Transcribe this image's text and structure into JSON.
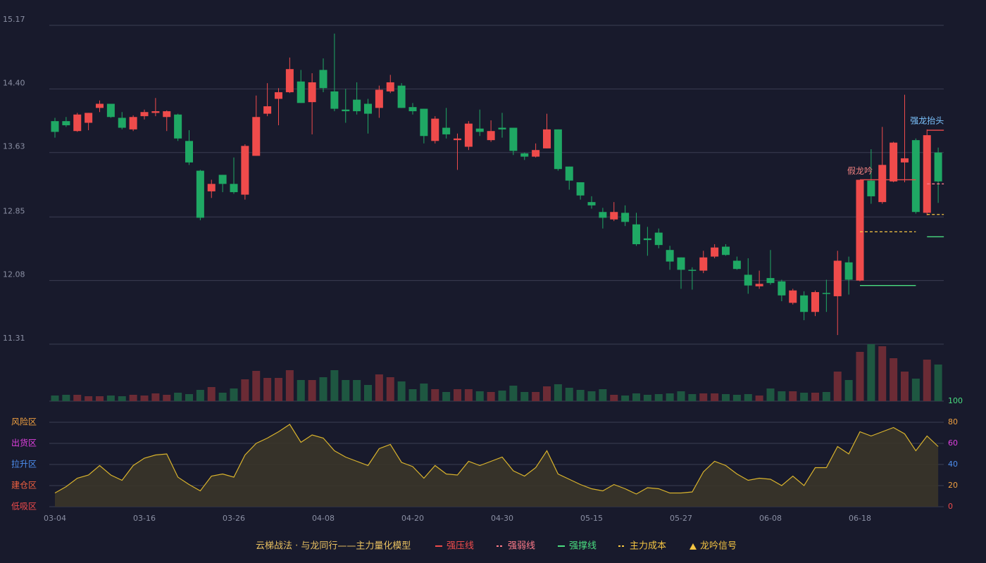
{
  "chart_data": {
    "type": "candlestick",
    "categories": [
      "03-04",
      null,
      null,
      null,
      null,
      null,
      null,
      null,
      "03-16",
      null,
      null,
      null,
      null,
      null,
      null,
      null,
      "03-26",
      null,
      null,
      null,
      null,
      null,
      null,
      null,
      "04-08",
      null,
      null,
      null,
      null,
      null,
      null,
      null,
      "04-20",
      null,
      null,
      null,
      null,
      null,
      null,
      null,
      "04-30",
      null,
      null,
      null,
      null,
      null,
      null,
      null,
      "05-15",
      null,
      null,
      null,
      null,
      null,
      null,
      null,
      "05-27",
      null,
      null,
      null,
      null,
      null,
      null,
      null,
      "06-08",
      null,
      null,
      null,
      null,
      null,
      null,
      null,
      "06-18",
      null,
      null,
      null,
      null,
      null,
      null,
      null
    ],
    "open": [
      14.01,
      14.01,
      13.89,
      13.99,
      14.17,
      14.22,
      14.05,
      13.91,
      14.07,
      14.11,
      14.06,
      14.09,
      13.77,
      13.41,
      13.16,
      13.36,
      13.25,
      13.12,
      13.59,
      14.1,
      14.28,
      14.36,
      14.49,
      14.24,
      14.63,
      14.37,
      14.15,
      14.27,
      14.22,
      14.17,
      14.37,
      14.44,
      14.18,
      14.16,
      13.77,
      13.93,
      13.78,
      13.7,
      13.92,
      13.78,
      13.93,
      13.93,
      13.62,
      13.58,
      13.68,
      13.91,
      13.46,
      13.27,
      13.03,
      12.91,
      12.82,
      12.9,
      12.76,
      12.59,
      12.66,
      12.45,
      12.36,
      12.21,
      12.2,
      12.37,
      12.49,
      12.32,
      12.15,
      12.01,
      12.11,
      12.07,
      11.81,
      11.9,
      11.7,
      11.93,
      11.89,
      12.3,
      12.08,
      13.29,
      13.03,
      13.28,
      13.51,
      13.78,
      12.9,
      13.63
    ],
    "high": [
      14.05,
      14.06,
      14.11,
      14.11,
      14.26,
      14.22,
      14.12,
      14.08,
      14.15,
      14.29,
      14.14,
      14.1,
      13.9,
      13.42,
      13.3,
      13.36,
      13.57,
      13.73,
      14.32,
      14.47,
      14.41,
      14.78,
      14.63,
      14.59,
      14.77,
      15.07,
      14.4,
      14.48,
      14.28,
      14.44,
      14.57,
      14.47,
      14.23,
      14.16,
      14.07,
      14.17,
      13.86,
      14.01,
      14.15,
      14.02,
      14.11,
      13.93,
      13.63,
      13.74,
      14.1,
      13.91,
      13.46,
      13.27,
      13.1,
      12.96,
      13.03,
      12.99,
      12.9,
      12.73,
      12.71,
      12.5,
      12.36,
      12.24,
      12.44,
      12.52,
      12.52,
      12.37,
      12.35,
      12.2,
      12.45,
      12.09,
      11.98,
      11.95,
      11.96,
      12.09,
      12.44,
      12.37,
      13.3,
      13.67,
      13.94,
      13.76,
      14.33,
      13.8,
      13.91,
      13.69
    ],
    "low": [
      13.81,
      13.94,
      13.88,
      13.9,
      14.12,
      14.05,
      13.91,
      13.89,
      14.03,
      14.07,
      13.89,
      13.77,
      13.48,
      12.81,
      13.08,
      13.15,
      13.13,
      13.06,
      13.59,
      14.07,
      13.96,
      14.35,
      14.23,
      13.85,
      14.36,
      14.13,
      13.99,
      14.09,
      13.86,
      14.05,
      14.35,
      14.17,
      14.09,
      13.74,
      13.74,
      13.8,
      13.42,
      13.66,
      13.83,
      13.76,
      13.81,
      13.6,
      13.54,
      13.57,
      13.68,
      13.41,
      13.18,
      13.06,
      12.95,
      12.71,
      12.8,
      12.74,
      12.5,
      12.38,
      12.47,
      12.21,
      11.98,
      11.97,
      12.17,
      12.35,
      12.38,
      12.21,
      11.92,
      11.98,
      12.03,
      11.83,
      11.79,
      11.6,
      11.65,
      11.7,
      11.42,
      11.91,
      12.07,
      13.01,
      13.01,
      13.27,
      13.27,
      12.89,
      12.87,
      13.02
    ],
    "close": [
      13.88,
      13.96,
      14.09,
      14.11,
      14.22,
      14.06,
      13.93,
      14.06,
      14.12,
      14.13,
      14.13,
      13.8,
      13.51,
      12.84,
      13.25,
      13.25,
      13.15,
      13.71,
      14.06,
      14.19,
      14.36,
      14.64,
      14.23,
      14.48,
      14.41,
      14.16,
      14.13,
      14.13,
      14.1,
      14.39,
      14.48,
      14.17,
      14.13,
      13.83,
      14.04,
      13.85,
      13.8,
      13.98,
      13.88,
      13.89,
      13.91,
      13.65,
      13.58,
      13.66,
      13.91,
      13.43,
      13.29,
      13.11,
      12.99,
      12.84,
      12.91,
      12.79,
      12.52,
      12.57,
      12.51,
      12.31,
      12.21,
      12.2,
      12.36,
      12.48,
      12.39,
      12.22,
      12.02,
      12.04,
      12.05,
      11.9,
      11.96,
      11.7,
      11.94,
      11.92,
      12.32,
      12.09,
      13.3,
      13.1,
      13.48,
      13.75,
      13.56,
      12.91,
      13.84,
      13.28
    ],
    "ylim": [
      11.31,
      15.17
    ],
    "yticks": [
      11.31,
      12.08,
      12.85,
      13.63,
      {
        "value": 14.4,
        "label": "14.40"
      },
      15.17
    ],
    "up_color": "#ef4b4b",
    "down_color": "#1fa864",
    "grid": true,
    "volume": {
      "values": [
        8,
        9,
        9,
        7,
        7,
        8,
        7,
        9,
        8,
        11,
        9,
        12,
        10,
        16,
        20,
        12,
        18,
        31,
        43,
        33,
        33,
        44,
        30,
        30,
        34,
        44,
        30,
        30,
        23,
        38,
        34,
        28,
        17,
        25,
        17,
        13,
        17,
        17,
        14,
        13,
        15,
        22,
        13,
        13,
        21,
        24,
        19,
        16,
        14,
        17,
        9,
        8,
        11,
        9,
        10,
        11,
        14,
        10,
        11,
        11,
        10,
        9,
        10,
        8,
        18,
        14,
        14,
        12,
        12,
        13,
        42,
        30,
        70,
        81,
        78,
        61,
        42,
        32,
        59,
        52
      ],
      "ylim": [
        0,
        81
      ],
      "up_color": "#6b2b35",
      "down_color": "#1e5741"
    },
    "oscillator": {
      "values": [
        13,
        19,
        27,
        30,
        39,
        30,
        25,
        39,
        46,
        49,
        50,
        28,
        21,
        15,
        29,
        31,
        28,
        49,
        60,
        65,
        71,
        78,
        61,
        68,
        65,
        53,
        47,
        43,
        39,
        55,
        59,
        42,
        38,
        27,
        39,
        31,
        30,
        43,
        39,
        43,
        47,
        34,
        29,
        37,
        53,
        31,
        26,
        21,
        17,
        15,
        21,
        17,
        12,
        18,
        17,
        13,
        13,
        14,
        33,
        43,
        39,
        31,
        25,
        27,
        26,
        20,
        29,
        20,
        37,
        37,
        57,
        50,
        71,
        67,
        71,
        75,
        69,
        53,
        67,
        57
      ],
      "ylim": [
        0,
        100
      ],
      "yticks": [
        0,
        20,
        40,
        60,
        80,
        100
      ],
      "ytick_colors": [
        "#ef4b4b",
        "#f0a040",
        "#4d8ff0",
        "#e040e0",
        "#f0a040",
        "#4ade80"
      ],
      "zones": [
        {
          "label": "风险区",
          "value": 80,
          "color": "#f0a040"
        },
        {
          "label": "出货区",
          "value": 60,
          "color": "#e040e0"
        },
        {
          "label": "拉升区",
          "value": 40,
          "color": "#4d8ff0"
        },
        {
          "label": "建仓区",
          "value": 20,
          "color": "#f06040"
        },
        {
          "label": "低吸区",
          "value": 0,
          "color": "#ef4b4b"
        }
      ],
      "color": "#d9b32c",
      "fill": "#3a3529"
    },
    "levels": [
      {
        "name": "强压线",
        "color": "#ef4b4b",
        "dash": false,
        "segments": [
          {
            "start": 72,
            "end": 77,
            "value": 13.3
          },
          {
            "start": 78,
            "end": 79,
            "value": 13.9
          }
        ]
      },
      {
        "name": "强弱线",
        "color": "#ff7b8a",
        "dash": true,
        "segments": [
          {
            "start": 78,
            "end": 79,
            "value": 13.25
          }
        ]
      },
      {
        "name": "强撑线",
        "color": "#4ade80",
        "dash": false,
        "segments": [
          {
            "start": 72,
            "end": 77,
            "value": 12.02
          },
          {
            "start": 78,
            "end": 79,
            "value": 12.61
          }
        ]
      },
      {
        "name": "主力成本",
        "color": "#f5c542",
        "dash": true,
        "segments": [
          {
            "start": 72,
            "end": 77,
            "value": 12.67
          },
          {
            "start": 78,
            "end": 79,
            "value": 12.88
          }
        ]
      }
    ],
    "signal": {
      "name": "龙吟信号",
      "color": "#f5c542"
    },
    "annotations": [
      {
        "text": "假龙吟",
        "index": 72,
        "color": "#f08080"
      },
      {
        "text": "强龙抬头",
        "index": 78,
        "color": "#7cc4ff"
      }
    ],
    "legend_title": "云梯战法 · 与龙同行——主力量化模型"
  }
}
